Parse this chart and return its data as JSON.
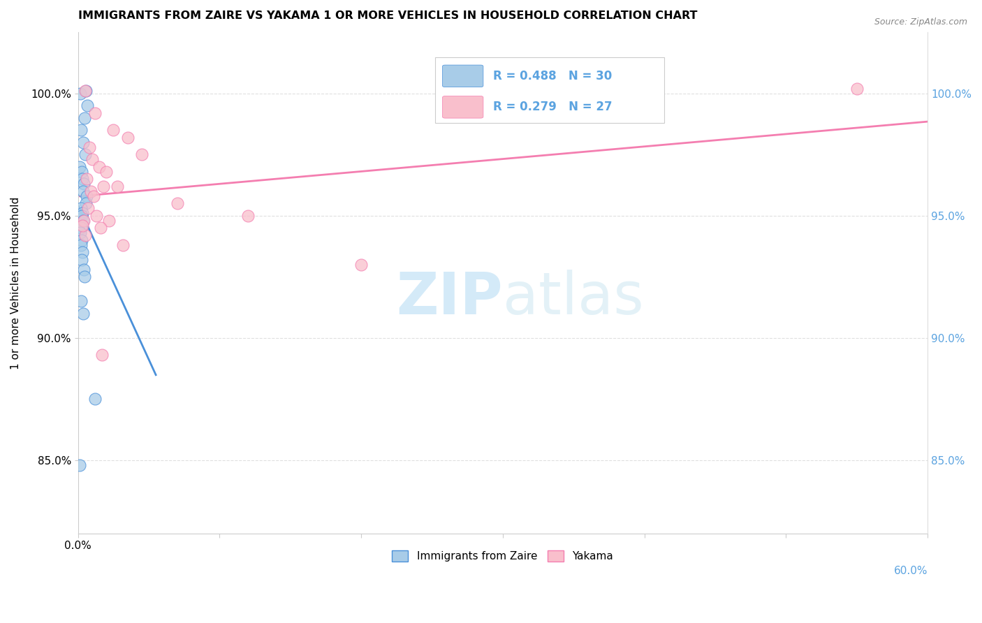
{
  "title": "IMMIGRANTS FROM ZAIRE VS YAKAMA 1 OR MORE VEHICLES IN HOUSEHOLD CORRELATION CHART",
  "source": "Source: ZipAtlas.com",
  "ylabel": "1 or more Vehicles in Household",
  "xlim": [
    0.0,
    60.0
  ],
  "ylim": [
    82.0,
    102.5
  ],
  "yticks": [
    85.0,
    90.0,
    95.0,
    100.0
  ],
  "ytick_labels": [
    "85.0%",
    "90.0%",
    "95.0%",
    "100.0%"
  ],
  "legend_blue_label": "Immigrants from Zaire",
  "legend_pink_label": "Yakama",
  "blue_r": "R = 0.488",
  "blue_n": "N = 30",
  "pink_r": "R = 0.279",
  "pink_n": "N = 27",
  "blue_color": "#a8cce8",
  "pink_color": "#f9bfcc",
  "blue_line_color": "#4a90d9",
  "pink_line_color": "#f47eb0",
  "blue_scatter_x": [
    0.15,
    0.55,
    0.65,
    0.45,
    0.2,
    0.35,
    0.5,
    0.1,
    0.25,
    0.3,
    0.4,
    0.35,
    0.6,
    0.55,
    0.2,
    0.3,
    0.25,
    0.35,
    0.2,
    0.15,
    0.25,
    0.2,
    0.3,
    0.25,
    0.4,
    0.45,
    0.2,
    0.35,
    1.2,
    0.1
  ],
  "blue_scatter_y": [
    100.0,
    100.1,
    99.5,
    99.0,
    98.5,
    98.0,
    97.5,
    97.0,
    96.8,
    96.5,
    96.3,
    96.0,
    95.8,
    95.5,
    95.3,
    95.1,
    95.0,
    94.8,
    94.5,
    94.3,
    94.0,
    93.8,
    93.5,
    93.2,
    92.8,
    92.5,
    91.5,
    91.0,
    87.5,
    84.8
  ],
  "pink_scatter_x": [
    0.5,
    1.2,
    2.5,
    3.5,
    0.8,
    1.0,
    1.5,
    2.0,
    0.6,
    1.8,
    0.9,
    1.1,
    7.0,
    0.7,
    1.3,
    2.2,
    1.6,
    0.5,
    3.2,
    12.0,
    20.0,
    55.0,
    0.4,
    2.8,
    4.5,
    0.3,
    1.7
  ],
  "pink_scatter_y": [
    100.1,
    99.2,
    98.5,
    98.2,
    97.8,
    97.3,
    97.0,
    96.8,
    96.5,
    96.2,
    96.0,
    95.8,
    95.5,
    95.3,
    95.0,
    94.8,
    94.5,
    94.2,
    93.8,
    95.0,
    93.0,
    100.2,
    94.8,
    96.2,
    97.5,
    94.6,
    89.3
  ],
  "blue_dot_size": 150,
  "pink_dot_size": 150,
  "bg_color": "#ffffff",
  "watermark_zip_color": "#d0e8f8",
  "watermark_atlas_color": "#d8ecf5",
  "grid_color": "#e0e0e0",
  "right_axis_color": "#5ba3e0",
  "source_color": "#888888"
}
